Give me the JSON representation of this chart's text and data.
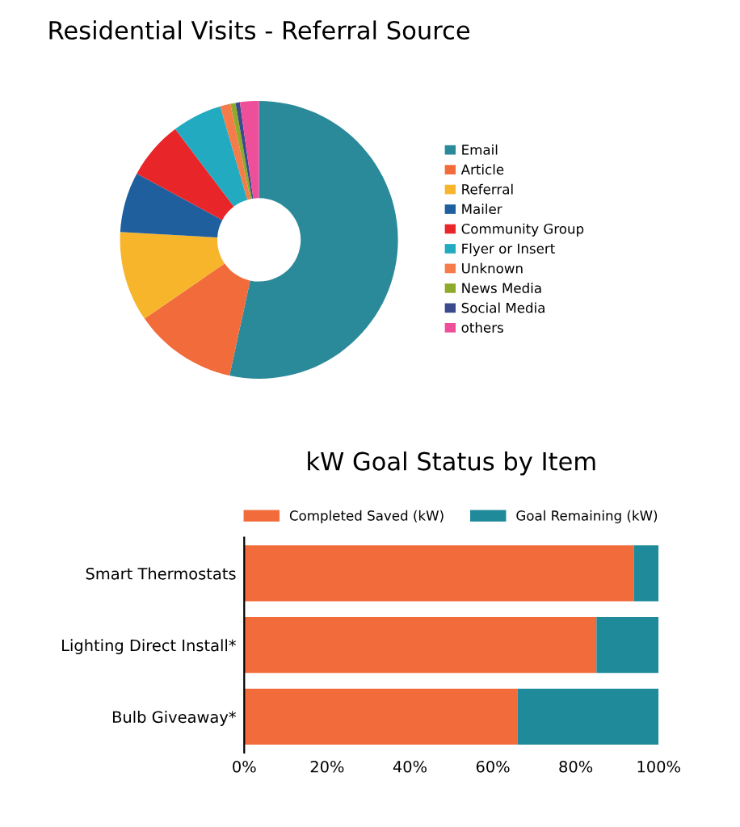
{
  "chart_data": [
    {
      "type": "donut",
      "title": "Residential Visits - Referral Source",
      "legend": "right",
      "categories": [
        "Email",
        "Article",
        "Referral",
        "Mailer",
        "Community Group",
        "Flyer or Insert",
        "Unknown",
        "News Media",
        "Social Media",
        "others"
      ],
      "values": [
        53.4,
        12,
        10.5,
        7,
        6.8,
        5.8,
        1.2,
        0.6,
        0.5,
        2.2
      ],
      "colors": [
        "#2a8a9a",
        "#f26b3a",
        "#f7b52c",
        "#1f5f9e",
        "#e8262a",
        "#21aac0",
        "#f47c4a",
        "#8faa2b",
        "#3a4a8c",
        "#ee4f9a"
      ]
    },
    {
      "type": "bar",
      "title": "kW Goal Status by Item",
      "orientation": "horizontal",
      "stacked": true,
      "legend": "top",
      "categories": [
        "Smart Thermostats",
        "Lighting Direct Install*",
        "Bulb Giveaway*"
      ],
      "series": [
        {
          "name": "Completed Saved (kW)",
          "color": "#f26b3a",
          "values": [
            94,
            85,
            66
          ]
        },
        {
          "name": "Goal Remaining (kW)",
          "color": "#1f8a9a",
          "values": [
            6,
            15,
            34
          ]
        }
      ],
      "xlim": [
        0,
        100
      ],
      "xticks": [
        {
          "value": 0,
          "label": "0%"
        },
        {
          "value": 20,
          "label": "20%"
        },
        {
          "value": 40,
          "label": "40%"
        },
        {
          "value": 60,
          "label": "60%"
        },
        {
          "value": 80,
          "label": "80%"
        },
        {
          "value": 100,
          "label": "100%"
        }
      ]
    }
  ]
}
